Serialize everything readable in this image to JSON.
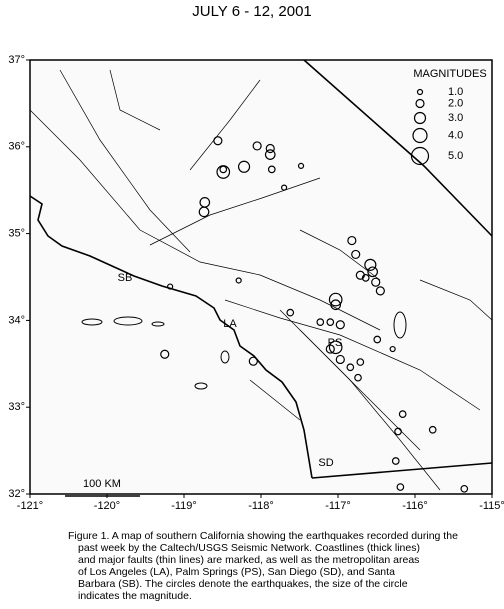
{
  "title": "JULY 6 - 12, 2001",
  "map": {
    "xlim": [
      -121,
      -115
    ],
    "ylim": [
      32,
      37
    ],
    "xticks": [
      {
        "value": -121,
        "label": "-121°"
      },
      {
        "value": -120,
        "label": "-120°"
      },
      {
        "value": -119,
        "label": "-119°"
      },
      {
        "value": -118,
        "label": "-118°"
      },
      {
        "value": -117,
        "label": "-117°"
      },
      {
        "value": -116,
        "label": "-116°"
      },
      {
        "value": -115,
        "label": "-115°"
      }
    ],
    "yticks": [
      {
        "value": 32,
        "label": "32°"
      },
      {
        "value": 33,
        "label": "33°"
      },
      {
        "value": 34,
        "label": "34°"
      },
      {
        "value": 35,
        "label": "35°"
      },
      {
        "value": 36,
        "label": "36°"
      },
      {
        "value": 37,
        "label": "37°"
      }
    ],
    "quakes": [
      {
        "lon": -118.56,
        "lat": 36.07,
        "mag": 2.0
      },
      {
        "lon": -118.49,
        "lat": 35.74,
        "mag": 1.5
      },
      {
        "lon": -118.22,
        "lat": 35.77,
        "mag": 3.0
      },
      {
        "lon": -118.49,
        "lat": 35.71,
        "mag": 3.5
      },
      {
        "lon": -118.05,
        "lat": 36.01,
        "mag": 2.0
      },
      {
        "lon": -117.88,
        "lat": 35.91,
        "mag": 2.5
      },
      {
        "lon": -117.88,
        "lat": 35.98,
        "mag": 2.0
      },
      {
        "lon": -117.86,
        "lat": 35.74,
        "mag": 1.5
      },
      {
        "lon": -117.7,
        "lat": 35.53,
        "mag": 1.0
      },
      {
        "lon": -118.73,
        "lat": 35.36,
        "mag": 2.5
      },
      {
        "lon": -118.74,
        "lat": 35.25,
        "mag": 2.5
      },
      {
        "lon": -117.48,
        "lat": 35.78,
        "mag": 1.0
      },
      {
        "lon": -116.82,
        "lat": 34.92,
        "mag": 2.0
      },
      {
        "lon": -116.77,
        "lat": 34.76,
        "mag": 2.0
      },
      {
        "lon": -116.58,
        "lat": 34.64,
        "mag": 3.0
      },
      {
        "lon": -116.55,
        "lat": 34.56,
        "mag": 2.5
      },
      {
        "lon": -116.71,
        "lat": 34.52,
        "mag": 2.0
      },
      {
        "lon": -116.51,
        "lat": 34.44,
        "mag": 2.0
      },
      {
        "lon": -116.45,
        "lat": 34.34,
        "mag": 2.0
      },
      {
        "lon": -116.64,
        "lat": 34.49,
        "mag": 1.5
      },
      {
        "lon": -117.03,
        "lat": 34.24,
        "mag": 3.5
      },
      {
        "lon": -117.03,
        "lat": 34.18,
        "mag": 2.5
      },
      {
        "lon": -117.62,
        "lat": 34.09,
        "mag": 1.5
      },
      {
        "lon": -117.23,
        "lat": 33.98,
        "mag": 1.5
      },
      {
        "lon": -117.1,
        "lat": 33.98,
        "mag": 1.5
      },
      {
        "lon": -116.97,
        "lat": 33.95,
        "mag": 2.0
      },
      {
        "lon": -117.1,
        "lat": 33.67,
        "mag": 2.0
      },
      {
        "lon": -117.03,
        "lat": 33.69,
        "mag": 3.5
      },
      {
        "lon": -116.97,
        "lat": 33.55,
        "mag": 2.0
      },
      {
        "lon": -116.84,
        "lat": 33.46,
        "mag": 1.5
      },
      {
        "lon": -116.74,
        "lat": 33.34,
        "mag": 1.5
      },
      {
        "lon": -116.71,
        "lat": 33.52,
        "mag": 1.5
      },
      {
        "lon": -116.49,
        "lat": 33.78,
        "mag": 1.5
      },
      {
        "lon": -116.29,
        "lat": 33.67,
        "mag": 1.0
      },
      {
        "lon": -119.25,
        "lat": 33.61,
        "mag": 2.0
      },
      {
        "lon": -118.1,
        "lat": 33.53,
        "mag": 2.0
      },
      {
        "lon": -116.16,
        "lat": 32.92,
        "mag": 1.5
      },
      {
        "lon": -116.25,
        "lat": 32.38,
        "mag": 1.5
      },
      {
        "lon": -116.19,
        "lat": 32.08,
        "mag": 1.5
      },
      {
        "lon": -115.77,
        "lat": 32.74,
        "mag": 1.5
      },
      {
        "lon": -116.22,
        "lat": 32.72,
        "mag": 1.5
      },
      {
        "lon": -115.36,
        "lat": 32.06,
        "mag": 1.5
      },
      {
        "lon": -119.18,
        "lat": 34.39,
        "mag": 1.0
      },
      {
        "lon": -118.29,
        "lat": 34.46,
        "mag": 1.0
      }
    ]
  },
  "legend": {
    "title": "MAGNITUDES",
    "items": [
      {
        "value": 1,
        "label": "1.0"
      },
      {
        "value": 2,
        "label": "2.0"
      },
      {
        "value": 3,
        "label": "3.0"
      },
      {
        "value": 4,
        "label": "4.0"
      },
      {
        "value": 5,
        "label": "5.0"
      }
    ]
  },
  "labels": {
    "sb": "SB",
    "la": "LA",
    "ps": "PS",
    "sd": "SD"
  },
  "scale_bar": "100 KM",
  "caption": [
    "Figure 1. A map of southern California showing the earthquakes recorded during the",
    "past week by the Caltech/USGS Seismic Network.  Coastlines (thick lines)",
    "and major faults (thin lines) are marked, as well as the metropolitan areas",
    "of Los Angeles (LA), Palm Springs (PS), San Diego (SD), and Santa",
    "Barbara (SB).  The circles denote the earthquakes, the size of the circle",
    "indicates the magnitude."
  ]
}
